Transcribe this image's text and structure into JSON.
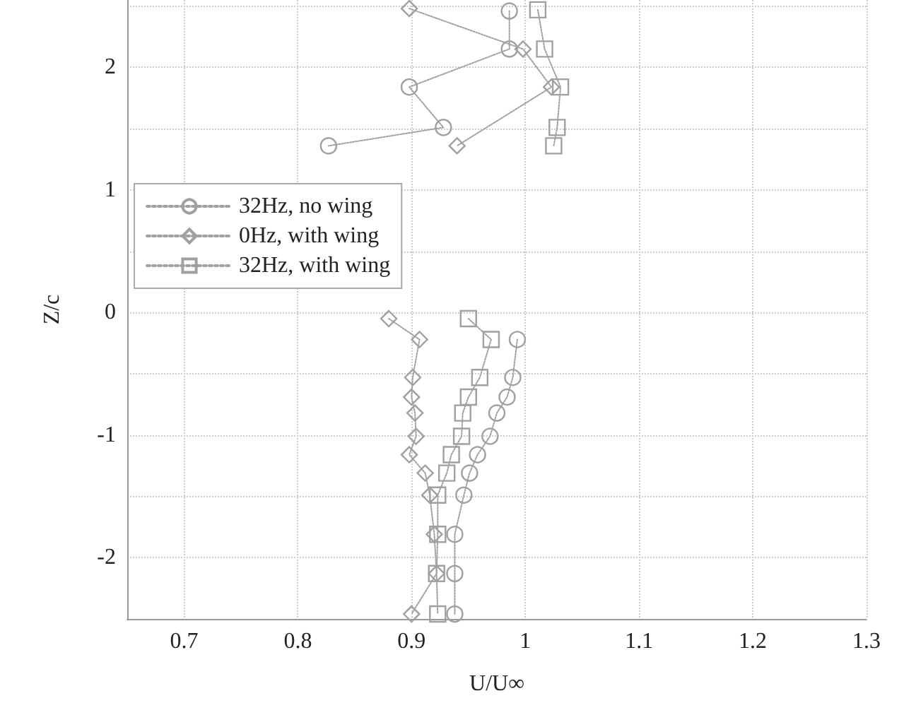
{
  "chart_data": {
    "type": "line",
    "xlabel": "U/U∞",
    "ylabel": "Z/c",
    "xlim": [
      0.65,
      1.3
    ],
    "ylim": [
      -2.5,
      2.55
    ],
    "xticks": [
      0.7,
      0.8,
      0.9,
      1,
      1.1,
      1.2,
      1.3
    ],
    "yticks": [
      -2,
      {
        "value": -1.5,
        "label": null
      },
      -1,
      {
        "value": -0.5,
        "label": null
      },
      0,
      {
        "value": 0.5,
        "label": null
      },
      1,
      {
        "value": 1.5,
        "label": null
      },
      2,
      {
        "value": 2.5,
        "label": null
      }
    ],
    "grid": true,
    "legend": "left",
    "line_style": "dotted",
    "series": [
      {
        "name": "32Hz, no wing",
        "color": "#a0a0a0",
        "marker": "circle",
        "x": [
          0.986,
          0.986,
          0.898,
          0.928,
          0.827,
          null,
          0.993,
          0.989,
          0.984,
          0.975,
          0.969,
          0.958,
          0.951,
          0.946,
          0.938,
          0.938,
          0.938
        ],
        "values": [
          2.46,
          2.15,
          1.84,
          1.51,
          1.36,
          null,
          -0.22,
          -0.53,
          -0.69,
          -0.82,
          -1.01,
          -1.16,
          -1.31,
          -1.49,
          -1.81,
          -2.13,
          -2.46
        ]
      },
      {
        "name": "0Hz, with wing",
        "color": "#a0a0a0",
        "marker": "diamond",
        "x": [
          0.898,
          0.998,
          1.023,
          0.94,
          null,
          0.88,
          0.907,
          0.901,
          0.9,
          0.903,
          0.904,
          0.898,
          0.912,
          0.916,
          0.92,
          0.922,
          0.9
        ],
        "values": [
          2.48,
          2.15,
          1.84,
          1.36,
          null,
          -0.05,
          -0.22,
          -0.53,
          -0.69,
          -0.82,
          -1.01,
          -1.16,
          -1.31,
          -1.49,
          -1.81,
          -2.13,
          -2.46
        ]
      },
      {
        "name": "32Hz, with wing",
        "color": "#a0a0a0",
        "marker": "square",
        "x": [
          1.011,
          1.017,
          1.031,
          1.028,
          1.025,
          null,
          0.95,
          0.97,
          0.96,
          0.95,
          0.945,
          0.944,
          0.935,
          0.931,
          0.923,
          0.923,
          0.922,
          0.923
        ],
        "values": [
          2.47,
          2.15,
          1.84,
          1.51,
          1.36,
          null,
          -0.05,
          -0.22,
          -0.53,
          -0.69,
          -0.82,
          -1.01,
          -1.16,
          -1.31,
          -1.49,
          -1.81,
          -2.13,
          -2.46
        ]
      }
    ]
  }
}
